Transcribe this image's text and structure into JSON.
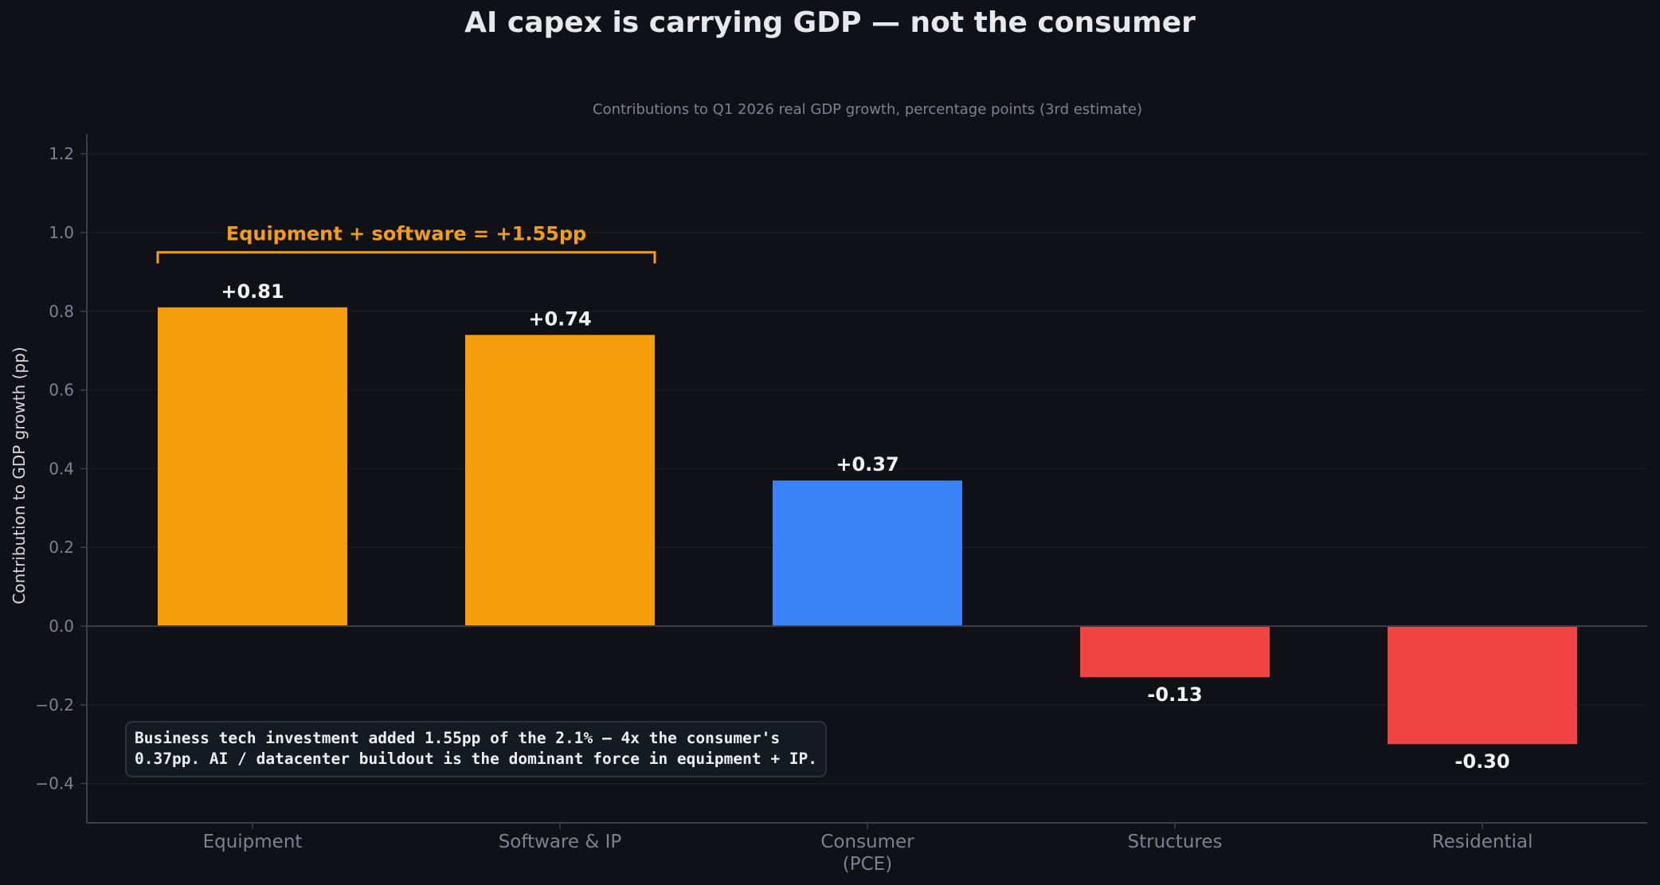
{
  "chart_data": {
    "type": "bar",
    "title": "AI capex is carrying GDP — not the consumer",
    "subtitle": "Contributions to Q1 2026 real GDP growth, percentage points (3rd estimate)",
    "ylabel": "Contribution to GDP growth (pp)",
    "xlabel": "",
    "ylim": [
      -0.5,
      1.25
    ],
    "yticks": [
      -0.4,
      -0.2,
      0.0,
      0.2,
      0.4,
      0.6,
      0.8,
      1.0,
      1.2
    ],
    "ytick_labels": [
      "−0.4",
      "−0.2",
      "0.0",
      "0.2",
      "0.4",
      "0.6",
      "0.8",
      "1.0",
      "1.2"
    ],
    "categories": [
      "Equipment",
      "Software & IP",
      "Consumer\n(PCE)",
      "Structures",
      "Residential"
    ],
    "values": [
      0.81,
      0.74,
      0.37,
      -0.13,
      -0.3
    ],
    "value_labels": [
      "+0.81",
      "+0.74",
      "+0.37",
      "-0.13",
      "-0.30"
    ],
    "colors": [
      "#f59e0b",
      "#f59e0b",
      "#3b82f6",
      "#ef4444",
      "#ef4444"
    ],
    "grid": true,
    "annotations": [
      {
        "type": "bracket",
        "text": "Equipment + software = +1.55pp",
        "from_category": 0,
        "to_category": 1,
        "y": 0.95,
        "color": "#f59e0b"
      }
    ],
    "note": [
      "Business tech investment added 1.55pp of the 2.1% — 4x the consumer's",
      "0.37pp. AI / datacenter buildout is the dominant force in equipment + IP."
    ]
  },
  "colors": {
    "background": "#0f1117",
    "axis": "#3a3e48",
    "grid": "#171a21",
    "muted_text": "#7d8190",
    "accent_orange": "#f59e0b",
    "accent_blue": "#3b82f6",
    "accent_red": "#ef4444"
  }
}
